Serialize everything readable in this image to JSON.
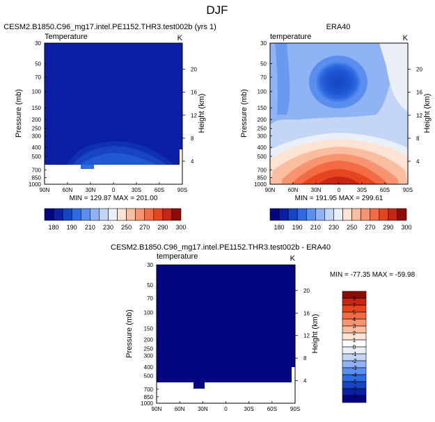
{
  "page_title": "DJF",
  "chart_data": [
    {
      "type": "heatmap",
      "title": "CESM2.B1850.C96_mg17.intel.PE1152.THR3.test002b (yrs 1)",
      "subtitle_left": "Temperature",
      "units": "K",
      "ylabel": "Pressure (mb)",
      "ylabel_right": "Height (km)",
      "x_ticks": [
        "90N",
        "60N",
        "30N",
        "0",
        "30S",
        "60S",
        "90S"
      ],
      "y_ticks": [
        "30",
        "50",
        "70",
        "100",
        "150",
        "200",
        "250",
        "300",
        "400",
        "500",
        "700",
        "850",
        "1000"
      ],
      "y_values": [
        30,
        50,
        70,
        100,
        150,
        200,
        250,
        300,
        400,
        500,
        700,
        850,
        1000
      ],
      "height_ticks": [
        "20",
        "16",
        "12",
        "8",
        "4"
      ],
      "height_values": [
        20,
        16,
        12,
        8,
        4
      ],
      "ylim": [
        1000,
        30
      ],
      "stats": "MIN = 129.87   MAX = 201.00",
      "min": 129.87,
      "max": 201.0,
      "colorbar": {
        "orientation": "horizontal",
        "labels": [
          "180",
          "190",
          "210",
          "230",
          "250",
          "270",
          "290",
          "300"
        ],
        "colors": [
          "#03067f",
          "#0a1fa3",
          "#1644c4",
          "#2e6ae0",
          "#5a8ff0",
          "#8fb3f5",
          "#c3d6f7",
          "#ebf0f8",
          "#fde3d3",
          "#fbbd9f",
          "#f89570",
          "#f26b44",
          "#e5451f",
          "#c62613",
          "#8f0b07"
        ]
      }
    },
    {
      "type": "heatmap",
      "title": "ERA40",
      "subtitle_left": "temperature",
      "units": "K",
      "ylabel": "Pressure (mb)",
      "ylabel_right": "Height (km)",
      "x_ticks": [
        "90N",
        "60N",
        "30N",
        "0",
        "30S",
        "60S",
        "90S"
      ],
      "y_ticks": [
        "30",
        "50",
        "70",
        "100",
        "150",
        "200",
        "250",
        "300",
        "400",
        "500",
        "700",
        "850",
        "1000"
      ],
      "y_values": [
        30,
        50,
        70,
        100,
        150,
        200,
        250,
        300,
        400,
        500,
        700,
        850,
        1000
      ],
      "height_ticks": [
        "20",
        "16",
        "12",
        "8",
        "4"
      ],
      "height_values": [
        20,
        16,
        12,
        8,
        4
      ],
      "ylim": [
        1000,
        30
      ],
      "stats": "MIN = 191.95   MAX = 299.61",
      "min": 191.95,
      "max": 299.61,
      "colorbar": {
        "orientation": "horizontal",
        "labels": [
          "180",
          "190",
          "210",
          "230",
          "250",
          "270",
          "290",
          "300"
        ],
        "colors": [
          "#03067f",
          "#0a1fa3",
          "#1644c4",
          "#2e6ae0",
          "#5a8ff0",
          "#8fb3f5",
          "#c3d6f7",
          "#ebf0f8",
          "#fde3d3",
          "#fbbd9f",
          "#f89570",
          "#f26b44",
          "#e5451f",
          "#c62613",
          "#8f0b07"
        ]
      }
    },
    {
      "type": "heatmap",
      "title": "CESM2.B1850.C96_mg17.intel.PE1152.THR3.test002b - ERA40",
      "subtitle_left": "temperature",
      "units": "K",
      "ylabel": "Pressure (mb)",
      "ylabel_right": "Height (km)",
      "x_ticks": [
        "90N",
        "60N",
        "30N",
        "0",
        "30S",
        "60S",
        "90S"
      ],
      "y_ticks": [
        "30",
        "50",
        "70",
        "100",
        "150",
        "200",
        "250",
        "300",
        "400",
        "500",
        "700",
        "850",
        "1000"
      ],
      "y_values": [
        30,
        50,
        70,
        100,
        150,
        200,
        250,
        300,
        400,
        500,
        700,
        850,
        1000
      ],
      "height_ticks": [
        "20",
        "16",
        "12",
        "8",
        "4"
      ],
      "height_values": [
        20,
        16,
        12,
        8,
        4
      ],
      "ylim": [
        1000,
        30
      ],
      "stats": "MIN = -77.35   MAX = -59.98",
      "min": -77.35,
      "max": -59.98,
      "colorbar": {
        "orientation": "vertical",
        "labels": [
          "9",
          "7",
          "5",
          "4",
          "3",
          "2",
          "1",
          "0",
          "-1",
          "-2",
          "-3",
          "-4",
          "-5",
          "-7",
          "-9"
        ],
        "colors": [
          "#8f0b07",
          "#c62613",
          "#e5451f",
          "#f26b44",
          "#f89570",
          "#fbbd9f",
          "#fde3d3",
          "#ffffff",
          "#ebf0f8",
          "#c3d6f7",
          "#8fb3f5",
          "#5a8ff0",
          "#2e6ae0",
          "#1644c4",
          "#0a1fa3",
          "#03067f"
        ]
      }
    }
  ]
}
